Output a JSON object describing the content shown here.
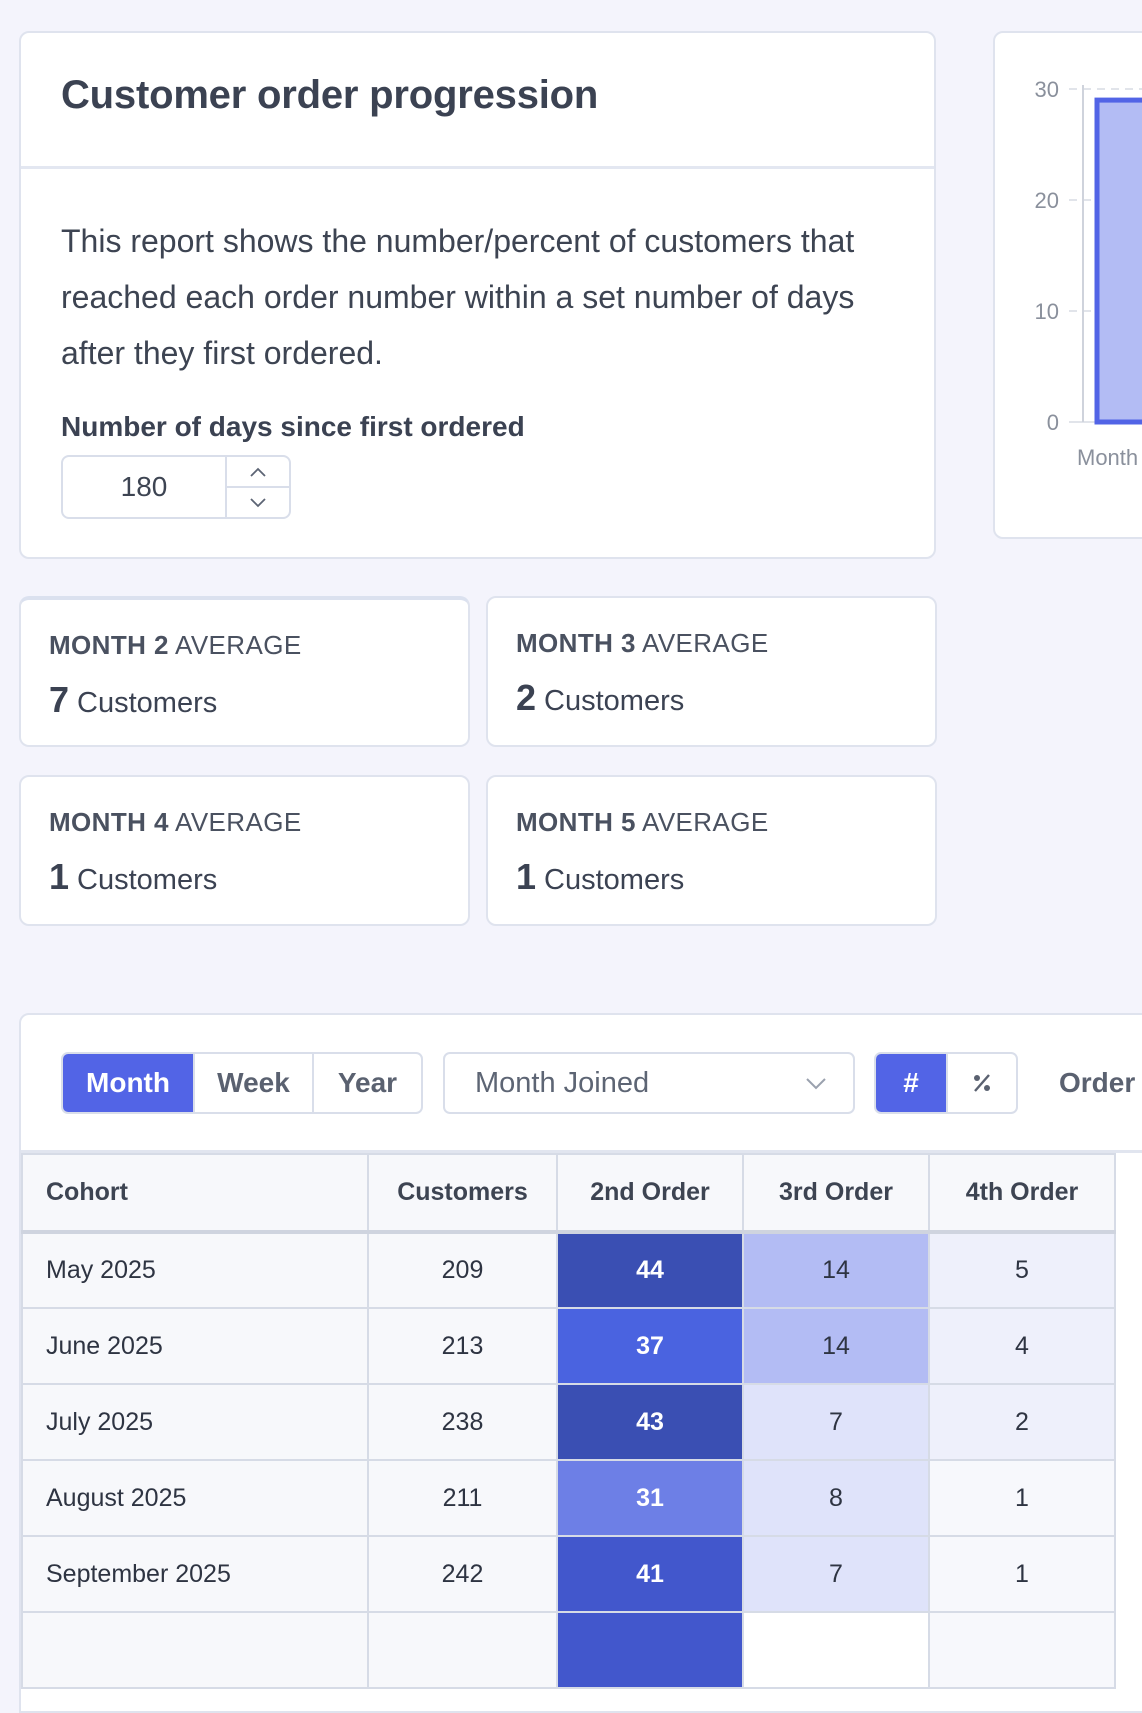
{
  "intro": {
    "title": "Customer order progression",
    "description": "This report shows the number/percent of customers that reached each order number within a set number of days after they first ordered.",
    "days_label": "Number of days since first ordered",
    "days_value": "180"
  },
  "chart_data": {
    "type": "bar",
    "categories": [
      "Month"
    ],
    "values": [
      29
    ],
    "ylim": [
      0,
      30
    ],
    "yticks": [
      "30",
      "20",
      "10",
      "0"
    ],
    "xlabel_visible": "Month",
    "color": "#5264e6",
    "fill": "#b3bcf4"
  },
  "stats": [
    {
      "label_bold": "MONTH 2",
      "label_rest": " AVERAGE",
      "value": "7",
      "unit": "Customers"
    },
    {
      "label_bold": "MONTH 3",
      "label_rest": " AVERAGE",
      "value": "2",
      "unit": "Customers"
    },
    {
      "label_bold": "MONTH 4",
      "label_rest": " AVERAGE",
      "value": "1",
      "unit": "Customers"
    },
    {
      "label_bold": "MONTH 5",
      "label_rest": " AVERAGE",
      "value": "1",
      "unit": "Customers"
    }
  ],
  "toolbar": {
    "period_options": [
      "Month",
      "Week",
      "Year"
    ],
    "period_selected": "Month",
    "cohort_select": "Month Joined",
    "mode_count": "#",
    "mode_percent": "%",
    "order_label": "Order l"
  },
  "table": {
    "headers": [
      "Cohort",
      "Customers",
      "2nd Order",
      "3rd Order",
      "4th Order"
    ],
    "rows": [
      {
        "cohort": "May 2025",
        "customers": "209",
        "o2": "44",
        "o3": "14",
        "o4": "5"
      },
      {
        "cohort": "June 2025",
        "customers": "213",
        "o2": "37",
        "o3": "14",
        "o4": "4"
      },
      {
        "cohort": "July 2025",
        "customers": "238",
        "o2": "43",
        "o3": "7",
        "o4": "2"
      },
      {
        "cohort": "August 2025",
        "customers": "211",
        "o2": "31",
        "o3": "8",
        "o4": "1"
      },
      {
        "cohort": "September 2025",
        "customers": "242",
        "o2": "41",
        "o3": "7",
        "o4": "1"
      },
      {
        "cohort": "",
        "customers": "",
        "o2": "",
        "o3": "",
        "o4": ""
      }
    ],
    "heat_colors": {
      "o2": [
        "#3a4fb3",
        "#4a63e0",
        "#3a4fb3",
        "#6d7fe6",
        "#4257cc",
        "#4257cc"
      ],
      "o3": [
        "#b3bcf4",
        "#b3bcf4",
        "#dfe3fa",
        "#dfe3fa",
        "#dfe3fa",
        "#ffffff"
      ],
      "o4": [
        "#eef0fb",
        "#eef0fb",
        "#eef0fb",
        "#f7f8fc",
        "#f7f8fc",
        "#f7f8fc"
      ]
    }
  }
}
